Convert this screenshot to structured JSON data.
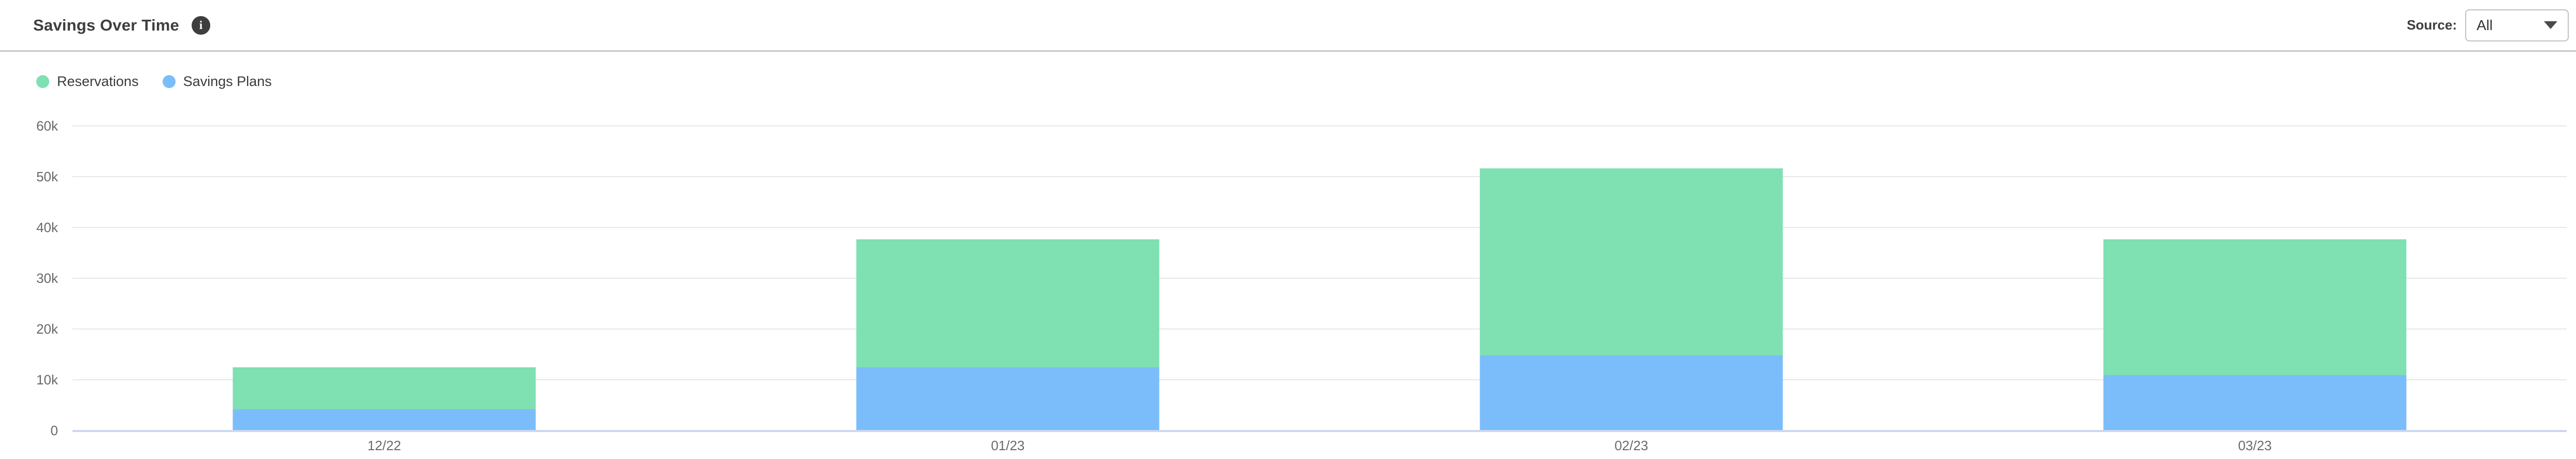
{
  "header": {
    "title": "Savings Over Time",
    "info_glyph": "i",
    "source_label": "Source:",
    "source_value": "All"
  },
  "legend": [
    {
      "label": "Reservations",
      "color": "#7fe0b2"
    },
    {
      "label": "Savings Plans",
      "color": "#7bbdfb"
    }
  ],
  "chart_data": {
    "type": "bar",
    "stacked": true,
    "title": "Savings Over Time",
    "categories": [
      "12/22",
      "01/23",
      "02/23",
      "03/23"
    ],
    "series": [
      {
        "name": "Reservations",
        "color": "#7fe0b2",
        "values": [
          8200,
          25200,
          36800,
          26800
        ]
      },
      {
        "name": "Savings Plans",
        "color": "#7bbdfb",
        "values": [
          4200,
          12500,
          14800,
          10900
        ]
      }
    ],
    "totals": [
      12400,
      37700,
      51600,
      37700
    ],
    "xlabel": "",
    "ylabel": "",
    "ylim": [
      0,
      60000
    ],
    "y_ticks": [
      "60k",
      "50k",
      "40k",
      "30k",
      "20k",
      "10k",
      "0"
    ],
    "grid": true,
    "legend_position": "top-left"
  },
  "colors": {
    "grid": "#e8e8e8",
    "baseline": "#ccd7ef",
    "axis_text": "#696969",
    "title_text": "#3e3e3e"
  }
}
